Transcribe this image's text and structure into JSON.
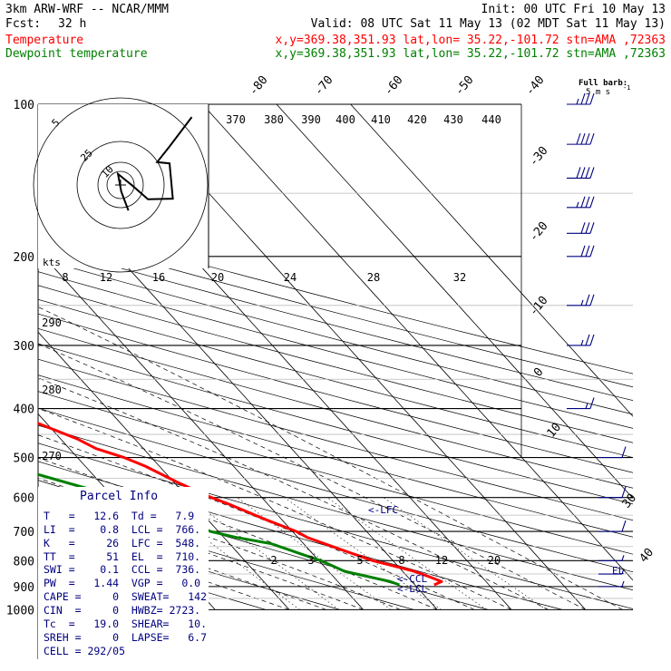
{
  "header": {
    "model": "3km ARW-WRF -- NCAR/MMM",
    "init": "Init: 00 UTC Fri 10 May 13",
    "fcst_label": "Fcst:",
    "fcst_value": "32 h",
    "valid": "Valid: 08 UTC Sat 11 May 13 (02 MDT Sat 11 May 13)"
  },
  "legend": [
    {
      "name": "Temperature",
      "info": "x,y=369.38,351.93    lat,lon= 35.22,-101.72   stn=AMA ,72363",
      "color": "#ff0000"
    },
    {
      "name": "Dewpoint temperature",
      "info": "x,y=369.38,351.93    lat,lon= 35.22,-101.72   stn=AMA ,72363",
      "color": "#008000"
    }
  ],
  "barb_key": {
    "title": "Full barb:",
    "value": "5 m s",
    "exp": "-1"
  },
  "hodograph": {
    "units": "kts",
    "ring_labels": [
      "5",
      "25",
      "10"
    ],
    "x_labels": [
      "8",
      "12",
      "16",
      "20",
      "24",
      "28",
      "32"
    ]
  },
  "theta_labels": [
    "370",
    "380",
    "390",
    "400",
    "410",
    "420",
    "430",
    "440"
  ],
  "low_theta_labels": [
    "290",
    "280",
    "270"
  ],
  "mixing_ratio_labels": [
    "2",
    "3",
    "5",
    "8",
    "12",
    "20"
  ],
  "parcel_levels": {
    "lfc": "<-LFC",
    "ccl": "<-CCL",
    "lcl": "<-LCL",
    "el": "EL"
  },
  "parcel_info": {
    "title": "Parcel Info",
    "rows": [
      "T   =   12.6  Td =   7.9",
      "LI  =    0.8  LCL =  766.",
      "K   =     26  LFC =  548.",
      "TT  =     51  EL  =  710.",
      "SWI =    0.1  CCL =  736.",
      "PW  =   1.44  VGP =   0.0",
      "CAPE =     0  SWEAT=   142",
      "CIN  =     0  HWBZ= 2723.",
      "Tc  =   19.0  SHEAR=   10.",
      "SREH =     0  LAPSE=   6.7",
      "CELL = 292/05"
    ]
  },
  "chart_data": {
    "type": "skew-t",
    "pressure_levels": [
      100,
      200,
      300,
      400,
      500,
      600,
      700,
      800,
      900,
      1000
    ],
    "pressure_tick_labels": [
      "100",
      "200",
      "300",
      "400",
      "500",
      "600",
      "700",
      "800",
      "900",
      "1000"
    ],
    "temperature_tick_labels": [
      "-80",
      "-70",
      "-60",
      "-50",
      "-40",
      "-30",
      "-20",
      "-10",
      "0",
      "10",
      "30",
      "40"
    ],
    "ylim": [
      1000,
      100
    ],
    "series": [
      {
        "name": "Temperature",
        "color": "#ff0000",
        "pressure": [
          893,
          880,
          860,
          840,
          820,
          800,
          760,
          720,
          700,
          660,
          620,
          600,
          560,
          520,
          500,
          480,
          460,
          420,
          400,
          380,
          350,
          320,
          300,
          280,
          260,
          240,
          220,
          200,
          180,
          160,
          150,
          140,
          125,
          110,
          100
        ],
        "temperature": [
          12.6,
          14.0,
          12.9,
          11.6,
          9.5,
          7.3,
          4.3,
          1.3,
          0.5,
          -2.4,
          -5.1,
          -6.8,
          -9.5,
          -11.9,
          -13.7,
          -16.4,
          -17.7,
          -22.0,
          -24.3,
          -27.5,
          -32.8,
          -39.4,
          -43.4,
          -48.5,
          -55.5,
          -57.7,
          -56.9,
          -53.6,
          -50.6,
          -46.8,
          -43.7,
          -41.5,
          -39.0,
          -39.2,
          -37.5
        ]
      },
      {
        "name": "Dewpoint temperature",
        "color": "#008000",
        "pressure": [
          893,
          880,
          860,
          840,
          800,
          780,
          760,
          740,
          720,
          700,
          680,
          640,
          600,
          580,
          540,
          500,
          470,
          440,
          400,
          380,
          360,
          330,
          300,
          280,
          260,
          240,
          220,
          200,
          170,
          150,
          130,
          110,
          100
        ],
        "temperature": [
          7.9,
          7.1,
          4.7,
          2.2,
          0.3,
          -1.3,
          -2.8,
          -4.4,
          -8.2,
          -11.1,
          -12.1,
          -14.9,
          -19.9,
          -21.9,
          -27.4,
          -36.8,
          -40.7,
          -43.9,
          -45.4,
          -46.0,
          -43.7,
          -41.4,
          -44.0,
          -51.6,
          -58.3,
          -65.9,
          -71.0,
          -77.4,
          -79.0,
          -80.6,
          -81.1,
          -81.4,
          -82.4
        ]
      }
    ],
    "hodograph_winds": {
      "u": [
        1.2,
        0.1,
        -0.4,
        1.8,
        4.2,
        8.0,
        7.5,
        5.6,
        7.5,
        10.9
      ],
      "v": [
        -3.9,
        -1.0,
        1.7,
        -0.1,
        -2.2,
        -2.1,
        3.3,
        3.5,
        5.9,
        10.4
      ]
    },
    "wind_barbs": {
      "pressure": [
        100,
        120,
        140,
        160,
        180,
        200,
        250,
        300,
        400,
        500,
        600,
        700,
        800,
        850,
        900
      ],
      "speed_ms": [
        35,
        40,
        40,
        35,
        30,
        30,
        25,
        25,
        15,
        10,
        10,
        10,
        5,
        5,
        5
      ],
      "direction_deg": [
        270,
        270,
        270,
        270,
        270,
        270,
        270,
        270,
        270,
        250,
        250,
        230,
        200,
        190,
        180
      ]
    }
  }
}
